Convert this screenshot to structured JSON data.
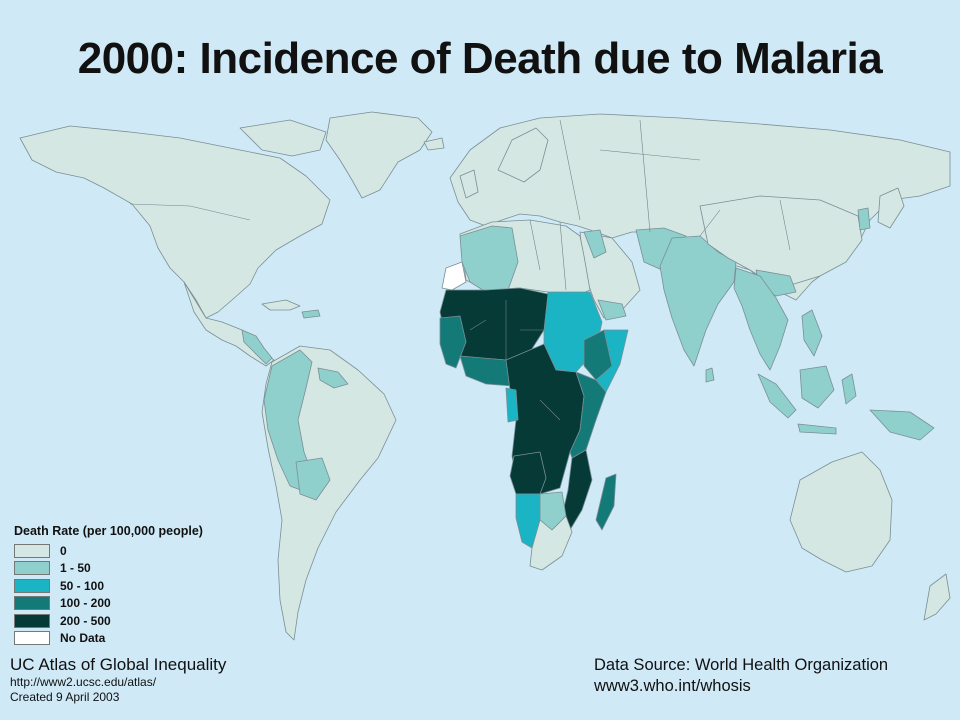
{
  "title": "2000: Incidence of Death due to Malaria",
  "legend": {
    "title": "Death Rate (per 100,000 people)",
    "items": [
      {
        "label": "0",
        "color": "#d4e7e2"
      },
      {
        "label": "1 - 50",
        "color": "#8fd0cc"
      },
      {
        "label": "50 - 100",
        "color": "#1ab4c4"
      },
      {
        "label": "100 - 200",
        "color": "#137a78"
      },
      {
        "label": "200 - 500",
        "color": "#063a36"
      },
      {
        "label": "No Data",
        "color": "#ffffff"
      }
    ]
  },
  "credit": {
    "line1": "UC Atlas of Global Inequality",
    "line2": "http://www2.ucsc.edu/atlas/",
    "line3": "Created 9 April 2003"
  },
  "source": {
    "line1": "Data Source: World Health Organization",
    "line2": "www3.who.int/whosis"
  },
  "colors": {
    "ocean": "#cfe9f7",
    "class_0": "#d4e7e2",
    "class_1_50": "#8fd0cc",
    "class_50_100": "#1ab4c4",
    "class_100_200": "#137a78",
    "class_200_500": "#063a36",
    "no_data": "#ffffff"
  }
}
